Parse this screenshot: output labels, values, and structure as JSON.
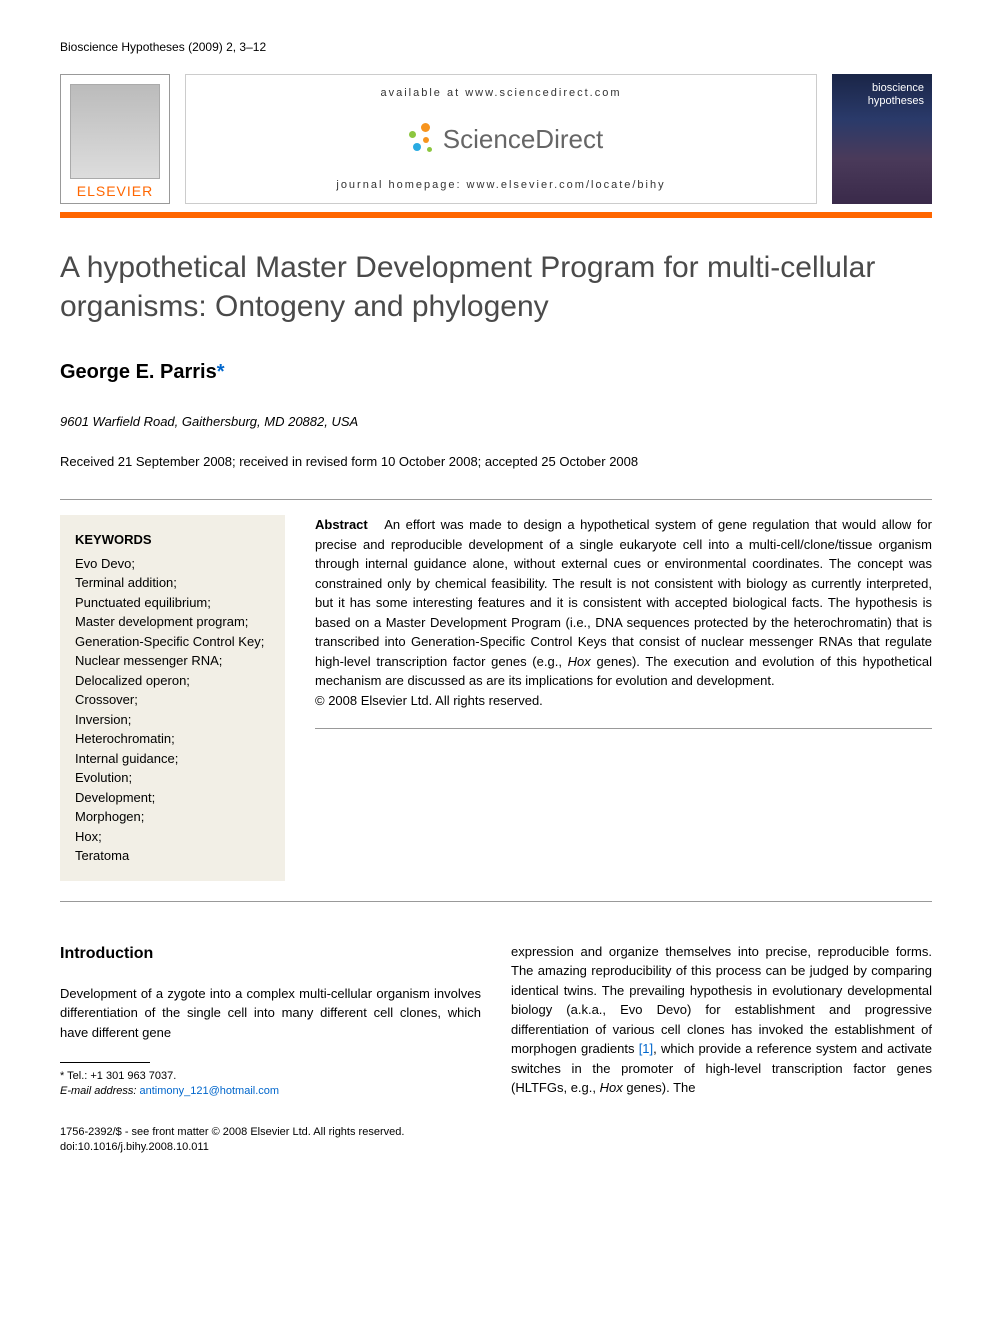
{
  "header": {
    "journal_ref": "Bioscience Hypotheses (2009) 2, 3–12",
    "available_at": "available at www.sciencedirect.com",
    "sd_brand": "ScienceDirect",
    "homepage": "journal homepage: www.elsevier.com/locate/bihy",
    "elsevier": "ELSEVIER",
    "cover_line1": "bioscience",
    "cover_line2": "hypotheses"
  },
  "colors": {
    "accent": "#ff6600",
    "link": "#0066cc",
    "keywords_bg": "#f2efe6",
    "title_gray": "#4a4a4a",
    "sd_dot_orange": "#f7941e",
    "sd_dot_green": "#8cc63f",
    "sd_dot_blue": "#29abe2"
  },
  "article": {
    "title": "A hypothetical Master Development Program for multi-cellular organisms: Ontogeny and phylogeny",
    "author": "George E. Parris",
    "author_mark": "*",
    "affiliation": "9601 Warfield Road, Gaithersburg, MD 20882, USA",
    "dates": "Received 21 September 2008; received in revised form 10 October 2008; accepted 25 October 2008"
  },
  "keywords": {
    "heading": "KEYWORDS",
    "items": [
      "Evo Devo;",
      "Terminal addition;",
      "Punctuated equilibrium;",
      "Master development program;",
      "Generation-Specific Control Key;",
      "Nuclear messenger RNA;",
      "Delocalized operon;",
      "Crossover;",
      "Inversion;",
      "Heterochromatin;",
      "Internal guidance;",
      "Evolution;",
      "Development;",
      "Morphogen;",
      "Hox;",
      "Teratoma"
    ]
  },
  "abstract": {
    "label": "Abstract",
    "body_pre": "An effort was made to design a hypothetical system of gene regulation that would allow for precise and reproducible development of a single eukaryote cell into a multi-cell/clone/tissue organism through internal guidance alone, without external cues or environmental coordinates. The concept was constrained only by chemical feasibility. The result is not consistent with biology as currently interpreted, but it has some interesting features and it is consistent with accepted biological facts. The hypothesis is based on a Master Development Program (i.e., DNA sequences protected by the heterochromatin) that is transcribed into Generation-Specific Control Keys that consist of nuclear messenger RNAs that regulate high-level transcription factor genes (e.g., ",
    "hox": "Hox",
    "body_post": " genes). The execution and evolution of this hypothetical mechanism are discussed as are its implications for evolution and development.",
    "copyright": "© 2008 Elsevier Ltd. All rights reserved."
  },
  "intro": {
    "heading": "Introduction",
    "col1": "Development of a zygote into a complex multi-cellular organism involves differentiation of the single cell into many different cell clones, which have different gene",
    "col2_pre": "expression and organize themselves into precise, reproducible forms. The amazing reproducibility of this process can be judged by comparing identical twins. The prevailing hypothesis in evolutionary developmental biology (a.k.a., Evo Devo) for establishment and progressive differentiation of various cell clones has invoked the establishment of morphogen gradients ",
    "ref1": "[1]",
    "col2_mid": ", which provide a reference system and activate switches in the promoter of high-level transcription factor genes (HLTFGs, e.g., ",
    "hox": "Hox",
    "col2_post": " genes). The"
  },
  "footnote": {
    "tel_label": "* Tel.: ",
    "tel": "+1 301 963 7037.",
    "email_label": "E-mail address:",
    "email": "antimony_121@hotmail.com"
  },
  "footer": {
    "line1": "1756-2392/$ - see front matter © 2008 Elsevier Ltd. All rights reserved.",
    "line2": "doi:10.1016/j.bihy.2008.10.011"
  }
}
